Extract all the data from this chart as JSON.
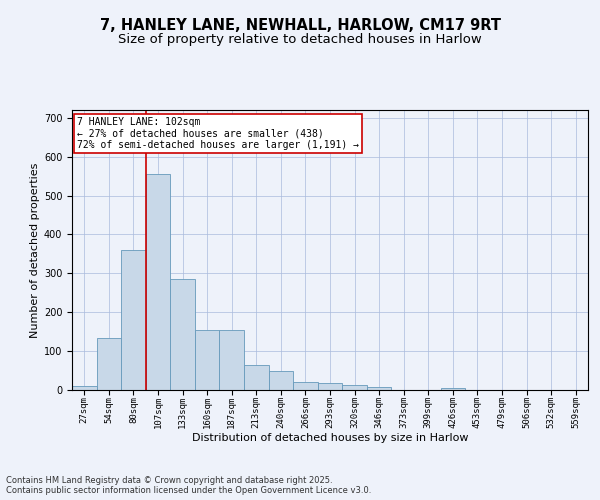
{
  "title_line1": "7, HANLEY LANE, NEWHALL, HARLOW, CM17 9RT",
  "title_line2": "Size of property relative to detached houses in Harlow",
  "xlabel": "Distribution of detached houses by size in Harlow",
  "ylabel": "Number of detached properties",
  "categories": [
    "27sqm",
    "54sqm",
    "80sqm",
    "107sqm",
    "133sqm",
    "160sqm",
    "187sqm",
    "213sqm",
    "240sqm",
    "266sqm",
    "293sqm",
    "320sqm",
    "346sqm",
    "373sqm",
    "399sqm",
    "426sqm",
    "453sqm",
    "479sqm",
    "506sqm",
    "532sqm",
    "559sqm"
  ],
  "values": [
    10,
    135,
    360,
    555,
    285,
    155,
    155,
    65,
    50,
    20,
    18,
    12,
    7,
    0,
    0,
    5,
    0,
    0,
    0,
    0,
    0
  ],
  "bar_color": "#c8d8e8",
  "bar_edge_color": "#6699bb",
  "vline_x_index": 3,
  "vline_color": "#cc0000",
  "annotation_text": "7 HANLEY LANE: 102sqm\n← 27% of detached houses are smaller (438)\n72% of semi-detached houses are larger (1,191) →",
  "annotation_box_color": "#ffffff",
  "annotation_box_edge_color": "#cc0000",
  "ylim": [
    0,
    720
  ],
  "yticks": [
    0,
    100,
    200,
    300,
    400,
    500,
    600,
    700
  ],
  "background_color": "#eef2fa",
  "footer_text": "Contains HM Land Registry data © Crown copyright and database right 2025.\nContains public sector information licensed under the Open Government Licence v3.0.",
  "title_fontsize": 10.5,
  "subtitle_fontsize": 9.5,
  "label_fontsize": 8,
  "tick_fontsize": 6.5,
  "annotation_fontsize": 7,
  "footer_fontsize": 6
}
